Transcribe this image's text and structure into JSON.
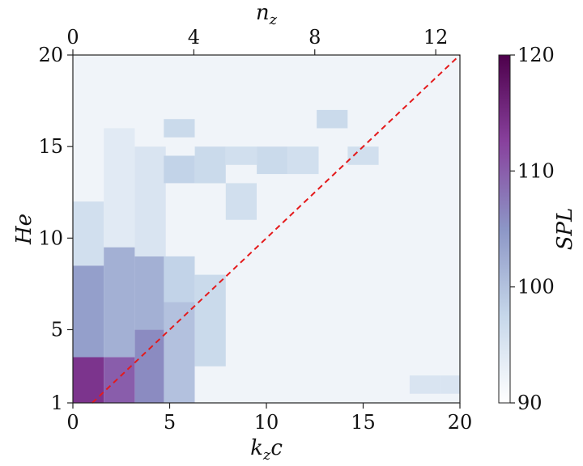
{
  "chart_data": {
    "type": "heatmap",
    "title": "",
    "xlabel_main": "k",
    "xlabel_sub": "z",
    "xlabel_tail": "c",
    "xlabel_top_main": "n",
    "xlabel_top_sub": "z",
    "ylabel": "He",
    "colorbar_label": "SPL",
    "xlim": [
      0,
      20
    ],
    "ylim": [
      1,
      20
    ],
    "xticks": [
      0,
      5,
      10,
      15,
      20
    ],
    "yticks": [
      1,
      5,
      10,
      15,
      20
    ],
    "top_xlim": [
      0,
      12.8
    ],
    "top_xticks": [
      0,
      4,
      8,
      12
    ],
    "colorbar_range": [
      90,
      120
    ],
    "colorbar_ticks": [
      90,
      100,
      110,
      120
    ],
    "colormap": [
      "#ffffff",
      "#c6d7ea",
      "#8c96c6",
      "#88419d",
      "#4d004b"
    ],
    "reference_line": {
      "color": "#e41a1c",
      "from": [
        1,
        1
      ],
      "to": [
        20,
        20
      ],
      "style": "dashed"
    },
    "x_bins": [
      0.8,
      2.4,
      4.0,
      5.5,
      7.1,
      8.7,
      10.3,
      11.9,
      13.4,
      15.0,
      16.6,
      18.2,
      19.8
    ],
    "bands": [
      {
        "x": 0.8,
        "He_from": 1,
        "He_to": 3.5,
        "SPL": 114
      },
      {
        "x": 0.8,
        "He_from": 3.5,
        "He_to": 8.5,
        "SPL": 104
      },
      {
        "x": 0.8,
        "He_from": 8.5,
        "He_to": 12,
        "SPL": 96
      },
      {
        "x": 2.4,
        "He_from": 1,
        "He_to": 3.5,
        "SPL": 110
      },
      {
        "x": 2.4,
        "He_from": 3.5,
        "He_to": 9.5,
        "SPL": 102
      },
      {
        "x": 2.4,
        "He_from": 9.5,
        "He_to": 16,
        "SPL": 94
      },
      {
        "x": 4.0,
        "He_from": 1,
        "He_to": 5,
        "SPL": 106
      },
      {
        "x": 4.0,
        "He_from": 5,
        "He_to": 9,
        "SPL": 102
      },
      {
        "x": 4.0,
        "He_from": 9,
        "He_to": 15,
        "SPL": 95
      },
      {
        "x": 5.5,
        "He_from": 1,
        "He_to": 6.5,
        "SPL": 100
      },
      {
        "x": 5.5,
        "He_from": 6.5,
        "He_to": 9,
        "SPL": 98
      },
      {
        "x": 5.5,
        "He_from": 13,
        "He_to": 14.5,
        "SPL": 98
      },
      {
        "x": 5.5,
        "He_from": 15.5,
        "He_to": 16.5,
        "SPL": 97
      },
      {
        "x": 7.1,
        "He_from": 3,
        "He_to": 8,
        "SPL": 97
      },
      {
        "x": 7.1,
        "He_from": 13,
        "He_to": 15,
        "SPL": 97
      },
      {
        "x": 8.7,
        "He_from": 11,
        "He_to": 13,
        "SPL": 96
      },
      {
        "x": 8.7,
        "He_from": 14,
        "He_to": 15,
        "SPL": 96
      },
      {
        "x": 10.3,
        "He_from": 13.5,
        "He_to": 15,
        "SPL": 97
      },
      {
        "x": 11.9,
        "He_from": 13.5,
        "He_to": 15,
        "SPL": 96
      },
      {
        "x": 13.4,
        "He_from": 16,
        "He_to": 17,
        "SPL": 97
      },
      {
        "x": 15.0,
        "He_from": 14,
        "He_to": 15,
        "SPL": 96
      },
      {
        "x": 18.2,
        "He_from": 1.5,
        "He_to": 2.5,
        "SPL": 95
      },
      {
        "x": 19.8,
        "He_from": 1.5,
        "He_to": 2.5,
        "SPL": 95
      }
    ],
    "background_SPL": 92
  }
}
